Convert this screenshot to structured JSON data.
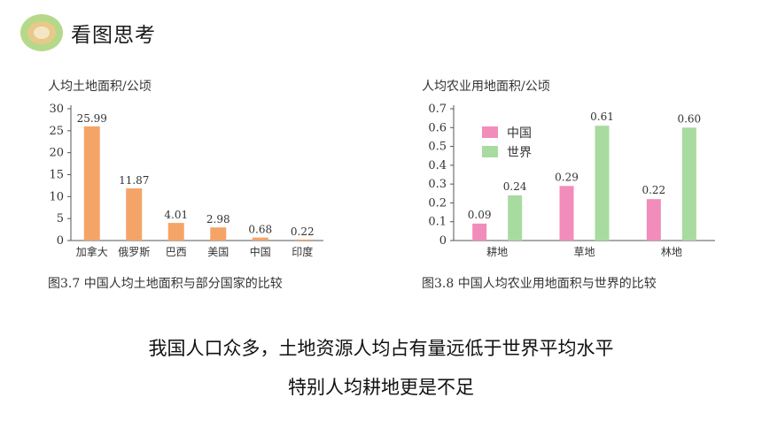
{
  "header": {
    "title": "看图思考"
  },
  "charts": [
    {
      "unit_label": "人均土地面积/公顷",
      "caption": "图3.7  中国人均土地面积与部分国家的比较",
      "bar_color": "#f5a468",
      "y_ticks": [
        "0",
        "5",
        "10",
        "15",
        "20",
        "25",
        "30"
      ]
    },
    {
      "unit_label": "人均农业用地面积/公顷",
      "caption": "图3.8  中国人均农业用地面积与世界的比较",
      "y_ticks": [
        "0",
        "0.1",
        "0.2",
        "0.3",
        "0.4",
        "0.5",
        "0.6",
        "0.7"
      ],
      "legend": [
        {
          "label": "中国",
          "color": "#f28cbb"
        },
        {
          "label": "世界",
          "color": "#a8dba0"
        }
      ]
    }
  ],
  "chart_data": [
    {
      "type": "bar",
      "title": "",
      "ylabel": "人均土地面积/公顷",
      "categories": [
        "加拿大",
        "俄罗斯",
        "巴西",
        "美国",
        "中国",
        "印度"
      ],
      "values": [
        25.99,
        11.87,
        4.01,
        2.98,
        0.68,
        0.22
      ],
      "value_labels": [
        "25.99",
        "11.87",
        "4.01",
        "2.98",
        "0.68",
        "0.22"
      ],
      "ylim": [
        0,
        30
      ],
      "grid": false
    },
    {
      "type": "bar",
      "title": "",
      "ylabel": "人均农业用地面积/公顷",
      "categories": [
        "耕地",
        "草地",
        "林地"
      ],
      "series": [
        {
          "name": "中国",
          "values": [
            0.09,
            0.29,
            0.22
          ],
          "value_labels": [
            "0.09",
            "0.29",
            "0.22"
          ]
        },
        {
          "name": "世界",
          "values": [
            0.24,
            0.61,
            0.6
          ],
          "value_labels": [
            "0.24",
            "0.61",
            "0.60"
          ]
        }
      ],
      "ylim": [
        0,
        0.7
      ],
      "legend_position": "top-left",
      "grid": false
    }
  ],
  "text": {
    "line1": "我国人口众多，土地资源人均占有量远低于世界平均水平",
    "line2": "特别人均耕地更是不足"
  }
}
